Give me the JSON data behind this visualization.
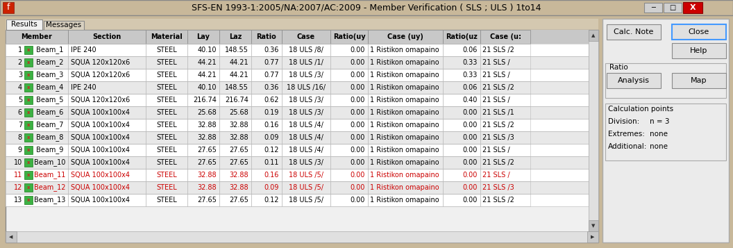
{
  "title": "SFS-EN 1993-1:2005/NA:2007/AC:2009 - Member Verification ( SLS ; ULS ) 1to14",
  "window_bg": "#c8b89a",
  "title_bar_color": "#c8b89a",
  "panel_bg": "#f0f0f0",
  "right_panel_bg": "#ebebeb",
  "table_header_bg": "#c8c8c8",
  "button_color": "#e8e8e8",
  "col_defs": [
    [
      "Member",
      90
    ],
    [
      "Section",
      112
    ],
    [
      "Material",
      60
    ],
    [
      "Lay",
      46
    ],
    [
      "Laz",
      46
    ],
    [
      "Ratio",
      44
    ],
    [
      "Case",
      70
    ],
    [
      "Ratio(uy",
      54
    ],
    [
      "Case (uy)",
      108
    ],
    [
      "Ratio(uz",
      54
    ],
    [
      "Case (u:",
      72
    ]
  ],
  "rows": [
    [
      "1  Beam_1",
      "IPE 240",
      "STEEL",
      "40.10",
      "148.55",
      "0.36",
      "18 ULS /8/",
      "0.00",
      "1 Ristikon omapaino",
      "0.06",
      "21 SLS /2"
    ],
    [
      "2  Beam_2",
      "SQUA 120x120x6",
      "STEEL",
      "44.21",
      "44.21",
      "0.77",
      "18 ULS /1/",
      "0.00",
      "1 Ristikon omapaino",
      "0.33",
      "21 SLS /"
    ],
    [
      "3  Beam_3",
      "SQUA 120x120x6",
      "STEEL",
      "44.21",
      "44.21",
      "0.77",
      "18 ULS /3/",
      "0.00",
      "1 Ristikon omapaino",
      "0.33",
      "21 SLS /"
    ],
    [
      "4  Beam_4",
      "IPE 240",
      "STEEL",
      "40.10",
      "148.55",
      "0.36",
      "18 ULS /16/",
      "0.00",
      "1 Ristikon omapaino",
      "0.06",
      "21 SLS /2"
    ],
    [
      "5  Beam_5",
      "SQUA 120x120x6",
      "STEEL",
      "216.74",
      "216.74",
      "0.62",
      "18 ULS /3/",
      "0.00",
      "1 Ristikon omapaino",
      "0.40",
      "21 SLS /"
    ],
    [
      "6  Beam_6",
      "SQUA 100x100x4",
      "STEEL",
      "25.68",
      "25.68",
      "0.19",
      "18 ULS /3/",
      "0.00",
      "1 Ristikon omapaino",
      "0.00",
      "21 SLS /1"
    ],
    [
      "7  Beam_7",
      "SQUA 100x100x4",
      "STEEL",
      "32.88",
      "32.88",
      "0.16",
      "18 ULS /4/",
      "0.00",
      "1 Ristikon omapaino",
      "0.00",
      "21 SLS /2"
    ],
    [
      "8  Beam_8",
      "SQUA 100x100x4",
      "STEEL",
      "32.88",
      "32.88",
      "0.09",
      "18 ULS /4/",
      "0.00",
      "1 Ristikon omapaino",
      "0.00",
      "21 SLS /3"
    ],
    [
      "9  Beam_9",
      "SQUA 100x100x4",
      "STEEL",
      "27.65",
      "27.65",
      "0.12",
      "18 ULS /4/",
      "0.00",
      "1 Ristikon omapaino",
      "0.00",
      "21 SLS /"
    ],
    [
      "10 Beam_10",
      "SQUA 100x100x4",
      "STEEL",
      "27.65",
      "27.65",
      "0.11",
      "18 ULS /3/",
      "0.00",
      "1 Ristikon omapaino",
      "0.00",
      "21 SLS /2"
    ],
    [
      "11 Beam_11",
      "SQUA 100x100x4",
      "STEEL",
      "32.88",
      "32.88",
      "0.16",
      "18 ULS /5/",
      "0.00",
      "1 Ristikon omapaino",
      "0.00",
      "21 SLS /"
    ],
    [
      "12 Beam_12",
      "SQUA 100x100x4",
      "STEEL",
      "32.88",
      "32.88",
      "0.09",
      "18 ULS /5/",
      "0.00",
      "1 Ristikon omapaino",
      "0.00",
      "21 SLS /3"
    ],
    [
      "13 Beam_13",
      "SQUA 100x100x4",
      "STEEL",
      "27.65",
      "27.65",
      "0.12",
      "18 ULS /5/",
      "0.00",
      "1 Ristikon omapaino",
      "0.00",
      "21 SLS /2"
    ]
  ],
  "red_rows": [
    10,
    11
  ],
  "tab1": "Results",
  "tab2": "Messages",
  "calc_note_label": "Calc. Note",
  "close_label": "Close",
  "help_label": "Help",
  "ratio_label": "Ratio",
  "analysis_label": "Analysis",
  "map_label": "Map",
  "calc_points_label": "Calculation points",
  "division_label": "Division:",
  "division_value": "n = 3",
  "extremes_label": "Extremes:",
  "extremes_value": "none",
  "additional_label": "Additional:",
  "additional_value": "none",
  "icon_green": "#3cb244",
  "icon_border": "#1a7a1a",
  "icon_x_color": "#cc2222"
}
